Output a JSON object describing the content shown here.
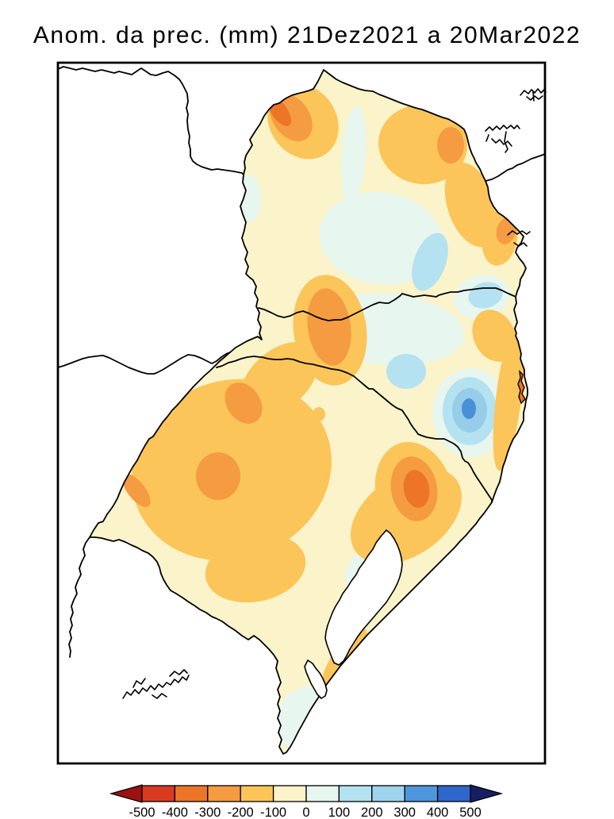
{
  "title": "Anom. da prec. (mm) 21Dez2021 a 20Mar2022",
  "unit": "mm",
  "palette": {
    "c0": "#fbf3c9",
    "m1": "#fbc55a",
    "m2": "#f59b42",
    "m3": "#ec7527",
    "m4": "#d93b22",
    "p1": "#e7f6ee",
    "p2": "#b5e2f1",
    "p3": "#98cde9",
    "p4": "#4a90d8"
  },
  "colorbar": {
    "tick_labels": [
      "-500",
      "-400",
      "-300",
      "-200",
      "-100",
      "0",
      "100",
      "200",
      "300",
      "400",
      "500"
    ],
    "segment_colors": [
      "#d93b22",
      "#ec7527",
      "#f59b42",
      "#fbc55a",
      "#fbf3c9",
      "#e7f6ee",
      "#b5e2f1",
      "#9fd4ec",
      "#4f97dc",
      "#2f66cc"
    ],
    "arrow_left_color": "#9c1212",
    "arrow_right_color": "#171f63"
  },
  "chart_data": {
    "type": "heatmap",
    "title": "Anom. da prec. (mm) 21Dez2021 a 20Mar2022",
    "variable": "precipitation anomaly",
    "unit": "mm",
    "period": "21Dez2021 a 20Mar2022",
    "levels": [
      -500,
      -400,
      -300,
      -200,
      -100,
      0,
      100,
      200,
      300,
      400,
      500
    ],
    "level_colors": [
      "#d93b22",
      "#ec7527",
      "#f59b42",
      "#fbc55a",
      "#fbf3c9",
      "#e7f6ee",
      "#b5e2f1",
      "#9fd4ec",
      "#4f97dc",
      "#2f66cc"
    ],
    "region": "Southern Brazil (Parana, Santa Catarina, Rio Grande do Sul)",
    "legend_position": "bottom",
    "features": [
      {
        "location": "northwest Parana",
        "value_range": [
          -400,
          -200
        ]
      },
      {
        "location": "north-central Parana border",
        "value_range": [
          -300,
          -100
        ]
      },
      {
        "location": "east Parana near coast",
        "value_range": [
          -300,
          -100
        ]
      },
      {
        "location": "central Parana",
        "value_range": [
          0,
          200
        ]
      },
      {
        "location": "central Parana / Santa Catarina border blob",
        "value_range": [
          -300,
          -100
        ]
      },
      {
        "location": "northern Santa Catarina",
        "value_range": [
          0,
          200
        ]
      },
      {
        "location": "southeast Santa Catarina bullseye",
        "value_range": [
          100,
          400
        ]
      },
      {
        "location": "Santa Catarina east coast strip and island",
        "value_range": [
          -300,
          -100
        ]
      },
      {
        "location": "south Santa Catarina / northeast Rio Grande do Sul spot",
        "value_range": [
          -400,
          -200
        ]
      },
      {
        "location": "west Rio Grande do Sul",
        "value_range": [
          -300,
          -100
        ]
      },
      {
        "location": "south-central Rio Grande do Sul",
        "value_range": [
          -200,
          -100
        ]
      },
      {
        "location": "Rio Grande do Sul coastal strip",
        "value_range": [
          -200,
          -100
        ]
      },
      {
        "location": "around Lagoa dos Patos",
        "value_range": [
          0,
          100
        ]
      }
    ]
  }
}
